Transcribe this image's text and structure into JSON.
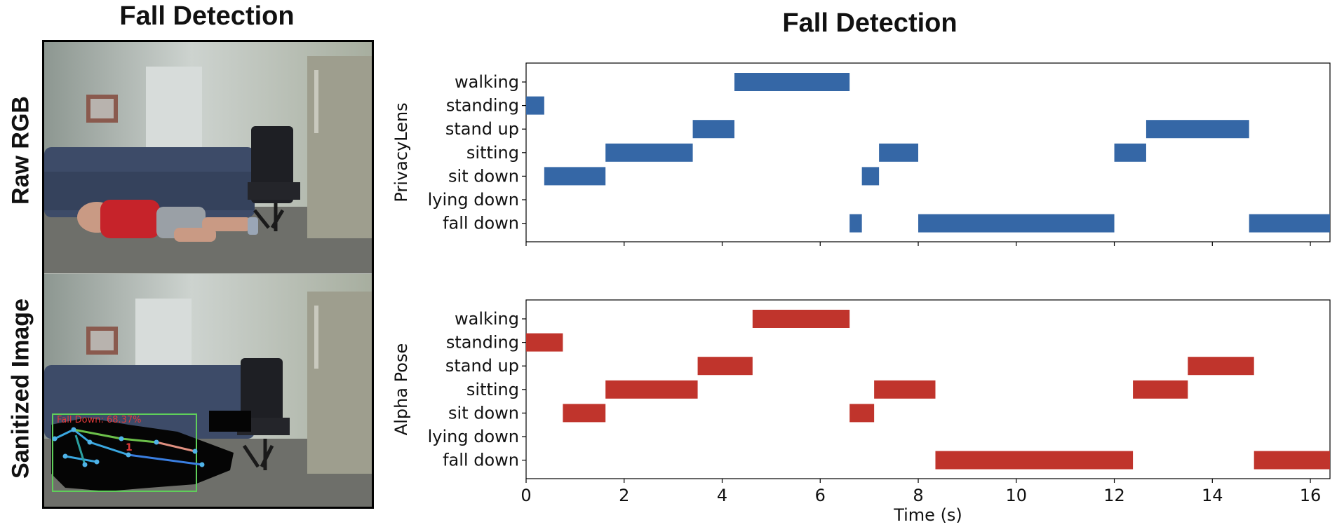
{
  "left_title": "Fall Detection",
  "right_title": "Fall Detection",
  "row_labels": {
    "raw": "Raw RGB",
    "sanitized": "Sanitized Image"
  },
  "overlay_text": "Fall Down: 68.37%",
  "overlay_id": "1",
  "colors": {
    "privacylens": "#3567a6",
    "alphapose": "#c0342c"
  },
  "chart_data": [
    {
      "type": "bar",
      "orientation": "horizontal-gantt",
      "ylabel": "PrivacyLens",
      "xlabel": "",
      "categories": [
        "walking",
        "standing",
        "stand up",
        "sitting",
        "sit down",
        "lying down",
        "fall down"
      ],
      "xlim": [
        0,
        16.4
      ],
      "xticks": [
        0,
        2,
        4,
        6,
        8,
        10,
        12,
        14,
        16
      ],
      "tick_labels_visible": false,
      "segments": [
        {
          "label": "walking",
          "start": 4.25,
          "end": 6.6
        },
        {
          "label": "standing",
          "start": 0.0,
          "end": 0.37
        },
        {
          "label": "stand up",
          "start": 3.4,
          "end": 4.25
        },
        {
          "label": "stand up",
          "start": 12.65,
          "end": 14.75
        },
        {
          "label": "sitting",
          "start": 1.62,
          "end": 3.4
        },
        {
          "label": "sitting",
          "start": 7.2,
          "end": 8.0
        },
        {
          "label": "sitting",
          "start": 12.0,
          "end": 12.65
        },
        {
          "label": "sit down",
          "start": 0.37,
          "end": 1.62
        },
        {
          "label": "sit down",
          "start": 6.85,
          "end": 7.2
        },
        {
          "label": "fall down",
          "start": 6.6,
          "end": 6.85
        },
        {
          "label": "fall down",
          "start": 8.0,
          "end": 12.0
        },
        {
          "label": "fall down",
          "start": 14.75,
          "end": 16.4
        }
      ]
    },
    {
      "type": "bar",
      "orientation": "horizontal-gantt",
      "ylabel": "Alpha Pose",
      "xlabel": "Time (s)",
      "categories": [
        "walking",
        "standing",
        "stand up",
        "sitting",
        "sit down",
        "lying down",
        "fall down"
      ],
      "xlim": [
        0,
        16.4
      ],
      "xticks": [
        0,
        2,
        4,
        6,
        8,
        10,
        12,
        14,
        16
      ],
      "tick_labels_visible": true,
      "segments": [
        {
          "label": "walking",
          "start": 4.62,
          "end": 6.6
        },
        {
          "label": "standing",
          "start": 0.0,
          "end": 0.75
        },
        {
          "label": "stand up",
          "start": 3.5,
          "end": 4.62
        },
        {
          "label": "stand up",
          "start": 13.5,
          "end": 14.85
        },
        {
          "label": "sitting",
          "start": 1.62,
          "end": 3.5
        },
        {
          "label": "sitting",
          "start": 7.1,
          "end": 8.35
        },
        {
          "label": "sitting",
          "start": 12.38,
          "end": 13.5
        },
        {
          "label": "sit down",
          "start": 0.75,
          "end": 1.62
        },
        {
          "label": "sit down",
          "start": 6.6,
          "end": 7.1
        },
        {
          "label": "fall down",
          "start": 8.35,
          "end": 12.38
        },
        {
          "label": "fall down",
          "start": 14.85,
          "end": 16.4
        }
      ]
    }
  ]
}
